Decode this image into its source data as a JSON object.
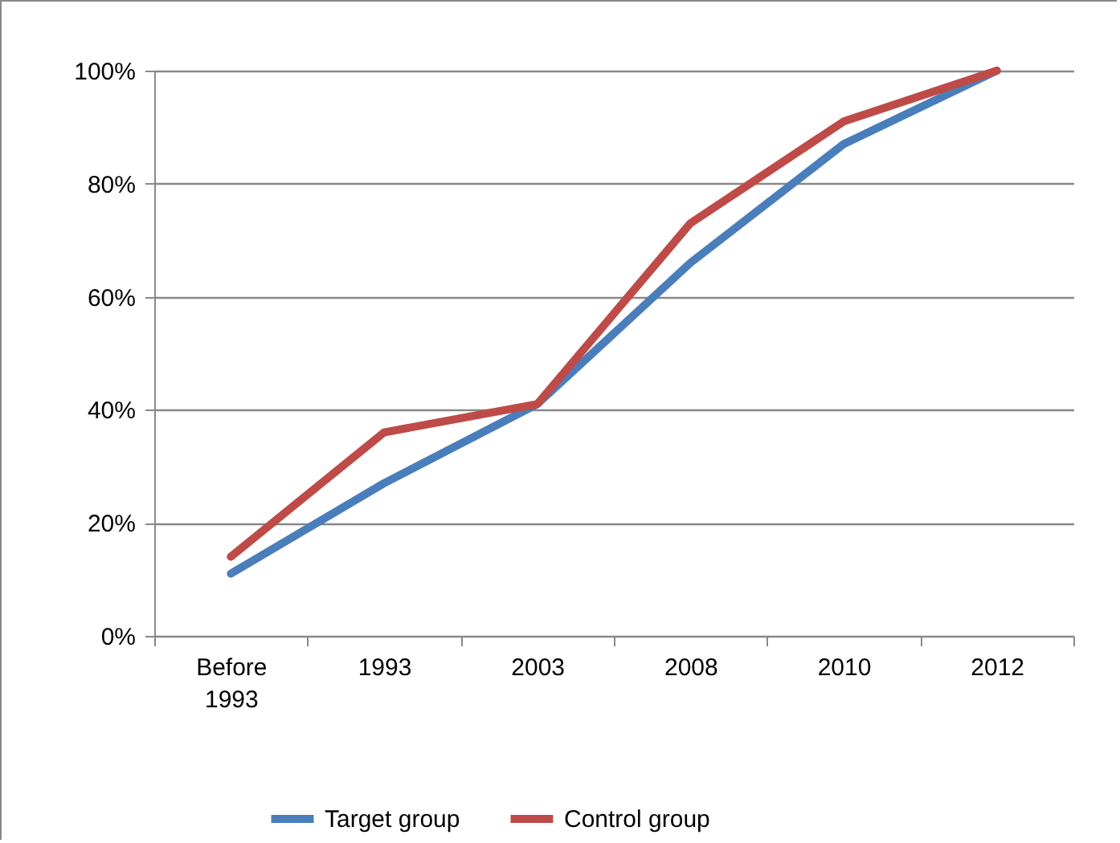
{
  "chart_data": {
    "type": "line",
    "categories": [
      "Before 1993",
      "1993",
      "2003",
      "2008",
      "2010",
      "2012"
    ],
    "series": [
      {
        "name": "Target group",
        "color": "#4a7ebb",
        "values": [
          11,
          27,
          41,
          66,
          87,
          100
        ]
      },
      {
        "name": "Control group",
        "color": "#be4b48",
        "values": [
          14,
          36,
          41,
          73,
          91,
          100
        ]
      }
    ],
    "ylim": [
      0,
      100
    ],
    "yticks": [
      {
        "value": 0,
        "label": "0%"
      },
      {
        "value": 20,
        "label": "20%"
      },
      {
        "value": 40,
        "label": "40%"
      },
      {
        "value": 60,
        "label": "60%"
      },
      {
        "value": 80,
        "label": "80%"
      },
      {
        "value": 100,
        "label": "100%"
      }
    ],
    "grid": "y",
    "legend": "bottom",
    "line_style": "solid",
    "marker": "none"
  }
}
